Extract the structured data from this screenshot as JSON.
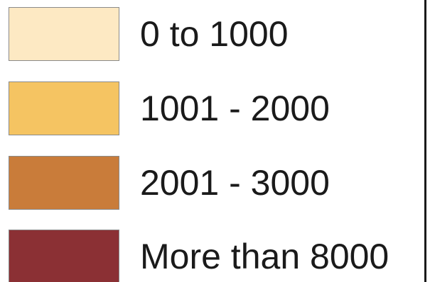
{
  "legend": {
    "items": [
      {
        "label": "0 to 1000",
        "color": "#fde9c3"
      },
      {
        "label": "1001 - 2000",
        "color": "#f5c462"
      },
      {
        "label": "2001 - 3000",
        "color": "#c97c3a"
      },
      {
        "label": "More than 8000",
        "color": "#8b3034"
      }
    ]
  }
}
